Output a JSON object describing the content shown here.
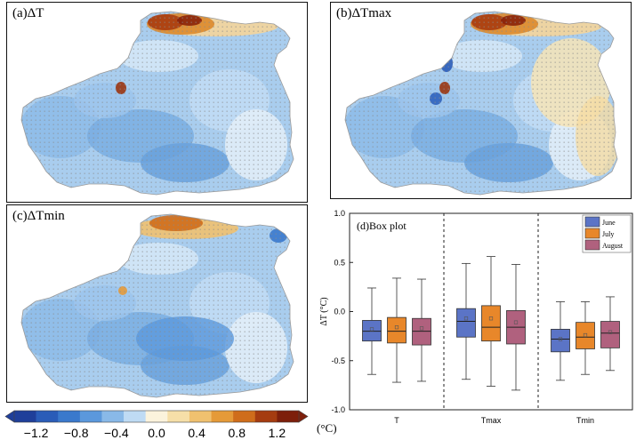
{
  "panels": {
    "a_label": "(a)ΔT",
    "b_label": "(b)ΔTmax",
    "c_label": "(c)ΔTmin",
    "d_label": "(d)Box plot"
  },
  "colorbar": {
    "colors": [
      "#1f3f9a",
      "#2a5cb8",
      "#3a79cc",
      "#5b98dc",
      "#89b9e8",
      "#bfdbf4",
      "#fbf3dc",
      "#f6dfa8",
      "#f0c16f",
      "#e59a38",
      "#cf6d1b",
      "#a53c10",
      "#7d1f0b"
    ],
    "ticks": [
      "−1.2",
      "−0.8",
      "−0.4",
      "0.0",
      "0.4",
      "0.8",
      "1.2"
    ],
    "unit": "(°C)"
  },
  "chart_data": {
    "type": "box",
    "title": "(d)Box plot",
    "ylabel": "ΔT (°C)",
    "ylim": [
      -1.0,
      1.0
    ],
    "yticks": [
      "1.0",
      "0.5",
      "0.0",
      "-0.5",
      "-1.0"
    ],
    "categories": [
      "T",
      "Tmax",
      "Tmin"
    ],
    "legend_position": "top-right",
    "series": [
      {
        "name": "June",
        "color": "#5b74c6",
        "boxes": [
          {
            "min": -0.64,
            "q1": -0.3,
            "median": -0.2,
            "q3": -0.09,
            "max": 0.24,
            "mean": -0.18
          },
          {
            "min": -0.69,
            "q1": -0.26,
            "median": -0.1,
            "q3": 0.03,
            "max": 0.49,
            "mean": -0.07
          },
          {
            "min": -0.7,
            "q1": -0.41,
            "median": -0.28,
            "q3": -0.18,
            "max": 0.1,
            "mean": -0.28
          }
        ]
      },
      {
        "name": "July",
        "color": "#e8872a",
        "boxes": [
          {
            "min": -0.72,
            "q1": -0.32,
            "median": -0.2,
            "q3": -0.06,
            "max": 0.34,
            "mean": -0.16
          },
          {
            "min": -0.76,
            "q1": -0.3,
            "median": -0.16,
            "q3": 0.06,
            "max": 0.56,
            "mean": -0.07
          },
          {
            "min": -0.64,
            "q1": -0.38,
            "median": -0.26,
            "q3": -0.11,
            "max": 0.1,
            "mean": -0.24
          }
        ]
      },
      {
        "name": "August",
        "color": "#b0617e",
        "boxes": [
          {
            "min": -0.71,
            "q1": -0.34,
            "median": -0.2,
            "q3": -0.07,
            "max": 0.33,
            "mean": -0.17
          },
          {
            "min": -0.8,
            "q1": -0.33,
            "median": -0.16,
            "q3": 0.01,
            "max": 0.48,
            "mean": -0.11
          },
          {
            "min": -0.6,
            "q1": -0.37,
            "median": -0.22,
            "q3": -0.1,
            "max": 0.15,
            "mean": -0.21
          }
        ]
      }
    ]
  }
}
